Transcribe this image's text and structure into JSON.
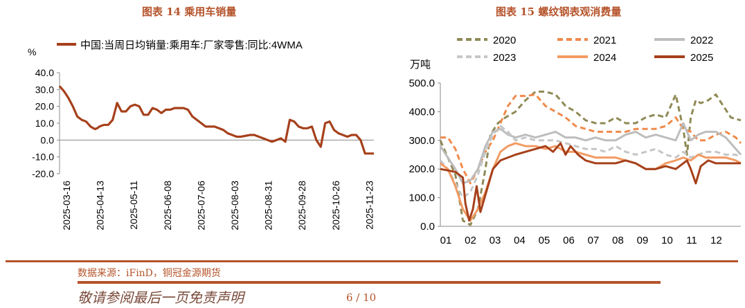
{
  "header": {
    "left_title": "图表 14  乘用车销量",
    "right_title": "图表 15  螺纹钢表观消费量"
  },
  "footer": {
    "source": "数据来源：iFinD，铜冠金源期货",
    "disclaimer": "敬请参阅最后一页免责声明",
    "page": "6 / 10"
  },
  "colors": {
    "accent": "#b5532a",
    "series_main": "#a6401b"
  },
  "chart_data": [
    {
      "type": "line",
      "title": "",
      "ylabel": "%",
      "xlabel": "",
      "legend_position": "top",
      "legend_entries": [
        "中国:当周日均销量:乘用车:厂家零售:同比:4WMA"
      ],
      "ylim": [
        -20,
        40
      ],
      "y_ticks": [
        "40.0",
        "30.0",
        "20.0",
        "10.0",
        "0.0",
        "-10.0",
        "-20.0"
      ],
      "x_tick_labels": [
        "2025-03-16",
        "2025-04-13",
        "2025-05-11",
        "2025-06-08",
        "2025-07-06",
        "2025-08-03",
        "2025-08-31",
        "2025-09-28",
        "2025-10-26",
        "2025-11-23"
      ],
      "grid": false,
      "series": [
        {
          "name": "中国:当周日均销量:乘用车:厂家零售:同比:4WMA",
          "color": "#a6401b",
          "x": [
            0,
            1,
            2,
            3,
            4,
            5,
            6,
            7,
            8,
            8.5,
            9,
            10,
            11,
            12,
            13,
            14,
            15,
            16,
            17,
            18,
            19,
            20,
            21,
            22,
            23,
            24,
            25,
            26,
            27,
            28,
            29,
            30,
            31,
            32,
            33,
            34,
            35,
            36,
            37,
            38,
            39,
            40,
            41,
            42,
            43,
            44,
            45,
            46,
            47,
            48,
            49,
            50,
            51,
            52,
            53,
            54,
            55,
            56,
            57,
            58,
            59,
            60,
            61,
            62,
            63,
            64,
            65,
            66,
            67,
            68,
            69,
            70,
            71,
            72,
            73,
            74,
            75,
            76,
            77,
            78,
            79,
            80,
            81,
            82,
            83,
            84,
            85,
            86,
            87,
            88,
            89,
            90
          ],
          "values": [
            32,
            29,
            25,
            20,
            14,
            12,
            11,
            8,
            6.5,
            7,
            8,
            9,
            9,
            12,
            22,
            17,
            17,
            20,
            21,
            20,
            15,
            15,
            19,
            18,
            16,
            18,
            18,
            19,
            19,
            19,
            18,
            14,
            12,
            10,
            8,
            8,
            8,
            7,
            6,
            4,
            3,
            2,
            2,
            2.5,
            3,
            3,
            2,
            1,
            0,
            -1,
            0,
            1,
            -1,
            12,
            11,
            8,
            7,
            7,
            8,
            0,
            -4,
            10,
            11,
            6,
            4,
            3,
            2,
            3,
            3,
            0,
            -8,
            -8,
            -8,
            -8,
            -8,
            -8,
            -8,
            -8,
            -8,
            -8,
            -8,
            -8,
            -8,
            -8,
            -8,
            -8,
            -8,
            -8,
            -8,
            -8,
            -8,
            -8
          ]
        }
      ]
    },
    {
      "type": "line",
      "title": "",
      "ylabel": "万吨",
      "xlabel": "",
      "legend_position": "top",
      "ylim": [
        0,
        500
      ],
      "y_ticks": [
        "500.0",
        "400.0",
        "300.0",
        "200.0",
        "100.0",
        "0.0"
      ],
      "x_tick_labels": [
        "01",
        "02",
        "03",
        "04",
        "05",
        "06",
        "07",
        "08",
        "09",
        "10",
        "11",
        "12"
      ],
      "grid": false,
      "series": [
        {
          "name": "2020",
          "color": "#8f8a56",
          "dash": "dashed",
          "x": [
            0,
            0.3,
            0.6,
            0.9,
            1.2,
            1.5,
            1.8,
            2.0,
            2.3,
            2.6,
            3.0,
            3.4,
            3.8,
            4.2,
            4.6,
            5.0,
            5.4,
            5.8,
            6.2,
            6.6,
            7.0,
            7.4,
            7.8,
            8.2,
            8.6,
            9.0,
            9.4,
            9.7,
            9.85,
            10.0,
            10.2,
            10.4,
            10.7,
            11.0,
            11.3,
            11.6,
            12.0
          ],
          "values": [
            300,
            240,
            180,
            20,
            5,
            60,
            200,
            320,
            360,
            380,
            400,
            440,
            470,
            470,
            460,
            420,
            400,
            370,
            360,
            360,
            380,
            360,
            360,
            380,
            390,
            380,
            460,
            340,
            250,
            380,
            440,
            430,
            440,
            460,
            420,
            380,
            370
          ]
        },
        {
          "name": "2021",
          "color": "#f08a4b",
          "dash": "dashed",
          "x": [
            0,
            0.3,
            0.6,
            0.9,
            1.2,
            1.5,
            1.8,
            2.1,
            2.4,
            2.7,
            3.0,
            3.4,
            3.8,
            4.2,
            4.6,
            5.0,
            5.4,
            5.8,
            6.2,
            6.6,
            7.0,
            7.4,
            7.8,
            8.2,
            8.6,
            9.0,
            9.4,
            9.7,
            10.0,
            10.3,
            10.6,
            11.0,
            11.4,
            11.8,
            12.0
          ],
          "values": [
            310,
            310,
            270,
            200,
            150,
            200,
            260,
            300,
            360,
            420,
            455,
            455,
            460,
            420,
            400,
            380,
            350,
            340,
            330,
            330,
            330,
            330,
            340,
            340,
            340,
            350,
            380,
            340,
            330,
            300,
            300,
            320,
            330,
            310,
            290
          ]
        },
        {
          "name": "2022",
          "color": "#bdbdbd",
          "dash": "solid",
          "x": [
            0,
            0.3,
            0.6,
            0.9,
            1.2,
            1.5,
            1.8,
            2.1,
            2.4,
            2.7,
            3.0,
            3.4,
            3.8,
            4.2,
            4.6,
            5.0,
            5.4,
            5.8,
            6.2,
            6.6,
            7.0,
            7.4,
            7.8,
            8.2,
            8.6,
            9.0,
            9.4,
            9.7,
            10.0,
            10.3,
            10.6,
            11.0,
            11.4,
            11.8,
            12.0
          ],
          "values": [
            280,
            240,
            200,
            150,
            160,
            200,
            280,
            330,
            340,
            320,
            310,
            320,
            310,
            320,
            330,
            310,
            310,
            300,
            310,
            300,
            300,
            320,
            330,
            310,
            320,
            310,
            300,
            360,
            300,
            320,
            330,
            330,
            310,
            270,
            250
          ]
        },
        {
          "name": "2023",
          "color": "#c6c6c6",
          "dash": "dashed",
          "x": [
            0,
            0.3,
            0.6,
            0.9,
            1.2,
            1.5,
            1.8,
            2.1,
            2.4,
            2.7,
            3.0,
            3.4,
            3.8,
            4.2,
            4.6,
            5.0,
            5.4,
            5.8,
            6.2,
            6.6,
            7.0,
            7.4,
            7.8,
            8.2,
            8.6,
            9.0,
            9.4,
            9.7,
            10.0,
            10.3,
            10.6,
            11.0,
            11.4,
            11.8,
            12.0
          ],
          "values": [
            230,
            200,
            150,
            100,
            120,
            180,
            260,
            320,
            350,
            330,
            300,
            310,
            300,
            300,
            300,
            290,
            280,
            270,
            270,
            260,
            280,
            260,
            250,
            260,
            270,
            250,
            240,
            260,
            240,
            250,
            260,
            260,
            250,
            250,
            240
          ]
        },
        {
          "name": "2024",
          "color": "#f29b63",
          "dash": "solid",
          "x": [
            0,
            0.3,
            0.6,
            0.9,
            1.2,
            1.5,
            1.8,
            2.1,
            2.4,
            2.7,
            3.0,
            3.4,
            3.8,
            4.2,
            4.6,
            5.0,
            5.4,
            5.8,
            6.2,
            6.6,
            7.0,
            7.4,
            7.8,
            8.2,
            8.6,
            9.0,
            9.4,
            9.7,
            10.0,
            10.3,
            10.6,
            11.0,
            11.4,
            11.8,
            12.0
          ],
          "values": [
            220,
            200,
            140,
            60,
            20,
            60,
            120,
            200,
            260,
            280,
            290,
            280,
            280,
            270,
            280,
            260,
            260,
            250,
            240,
            240,
            240,
            230,
            220,
            200,
            200,
            220,
            230,
            240,
            230,
            250,
            240,
            240,
            240,
            230,
            220
          ]
        },
        {
          "name": "2025",
          "color": "#a6401b",
          "dash": "solid",
          "x": [
            0,
            0.3,
            0.6,
            0.9,
            1.0,
            1.15,
            1.3,
            1.45,
            1.6,
            1.8,
            2.1,
            2.4,
            2.7,
            3.0,
            3.4,
            3.8,
            4.2,
            4.5,
            4.8,
            5.0,
            5.2,
            5.5,
            5.8,
            6.2,
            6.6,
            7.0,
            7.4,
            7.8,
            8.2,
            8.6,
            9.0,
            9.4,
            9.7,
            9.85,
            10.0,
            10.2,
            10.4,
            10.7,
            11.0,
            11.3,
            11.6,
            12.0
          ],
          "values": [
            200,
            195,
            190,
            170,
            80,
            20,
            60,
            140,
            50,
            110,
            200,
            230,
            240,
            250,
            260,
            270,
            280,
            260,
            290,
            250,
            280,
            250,
            230,
            220,
            220,
            220,
            230,
            220,
            200,
            200,
            210,
            200,
            220,
            230,
            200,
            150,
            210,
            230,
            220,
            220,
            220,
            220
          ]
        }
      ]
    }
  ]
}
